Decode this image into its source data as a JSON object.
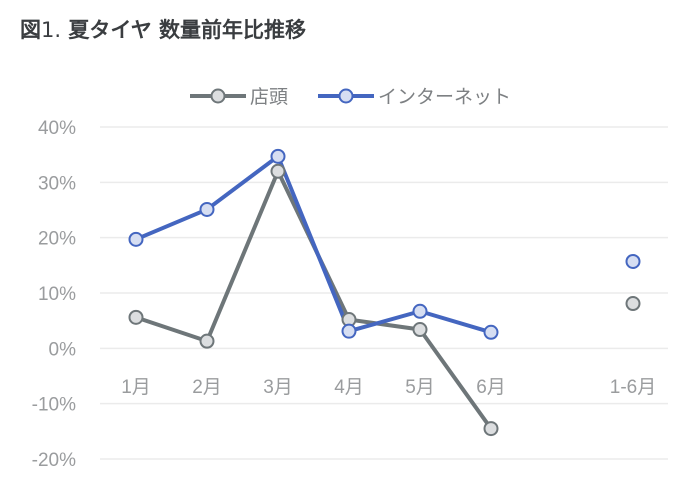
{
  "chart_data": {
    "type": "line",
    "title_prefix": "図",
    "title_number": "1.",
    "title": "夏タイヤ 数量前年比推移",
    "categories": [
      "1月",
      "2月",
      "3月",
      "4月",
      "5月",
      "6月",
      "",
      "1-6月"
    ],
    "ylim": [
      -20,
      40
    ],
    "yticks": [
      40,
      30,
      20,
      10,
      0,
      -10,
      -20
    ],
    "ytick_labels": [
      "40%",
      "30%",
      "20%",
      "10%",
      "0%",
      "-10%",
      "-20%"
    ],
    "grid": true,
    "legend_position": "top",
    "series": [
      {
        "name": "店頭",
        "color": "#6e7679",
        "marker_fill": "#dcdee0",
        "values": [
          5.6,
          1.3,
          32.0,
          5.2,
          3.4,
          -14.5,
          null,
          8.1
        ]
      },
      {
        "name": "インターネット",
        "color": "#4466c0",
        "marker_fill": "#d6def2",
        "values": [
          19.7,
          25.1,
          34.7,
          3.1,
          6.7,
          2.9,
          null,
          15.7
        ]
      }
    ]
  }
}
